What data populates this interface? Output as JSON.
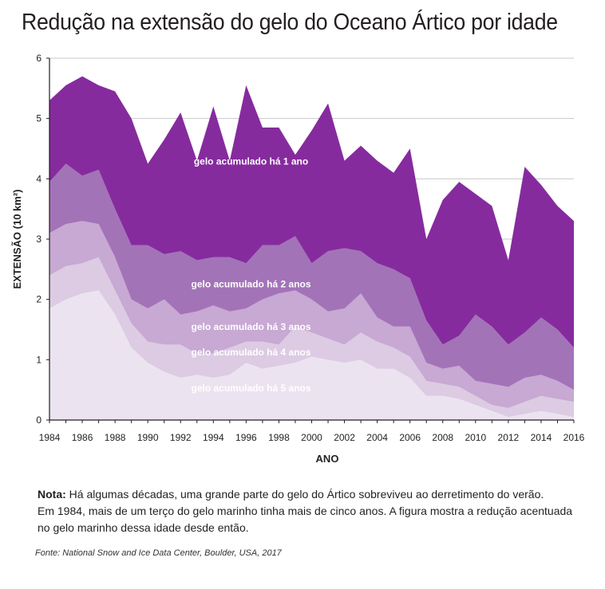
{
  "header": {
    "title": "Redução na extensão do gelo do Oceano Ártico por idade"
  },
  "note": {
    "lead": "Nota:",
    "line1": " Há algumas décadas, uma grande parte do gelo do Ártico sobreviveu ao derretimento do verão.",
    "line2": "Em 1984, mais de um terço do gelo marinho tinha mais de cinco anos. A figura mostra a redução acentuada",
    "line3": "no gelo marinho dessa idade desde então."
  },
  "source": "Fonte:  National Snow and Ice Data Center, Boulder, USA, 2017",
  "chart_data": {
    "type": "area",
    "stacked": true,
    "title": "Redução na extensão do gelo do Oceano Ártico por idade",
    "xlabel": "ANO",
    "ylabel": "EXTENSÃO (10 km²)",
    "ylim": [
      0,
      6
    ],
    "xlim": [
      1984,
      2016
    ],
    "yticks": [
      "0",
      "1",
      "2",
      "3",
      "4",
      "5",
      "6"
    ],
    "xticks": [
      "1984",
      "1986",
      "1988",
      "1990",
      "1992",
      "1994",
      "1996",
      "1998",
      "2000",
      "2002",
      "2004",
      "2006",
      "2008",
      "2010",
      "2012",
      "2014",
      "2016"
    ],
    "grid": "horizontal",
    "x": [
      1984,
      1985,
      1986,
      1987,
      1988,
      1989,
      1990,
      1991,
      1992,
      1993,
      1994,
      1995,
      1996,
      1997,
      1998,
      1999,
      2000,
      2001,
      2002,
      2003,
      2004,
      2005,
      2006,
      2007,
      2008,
      2009,
      2010,
      2011,
      2012,
      2013,
      2014,
      2015,
      2016
    ],
    "series": [
      {
        "name": "gelo acumulado há 5 anos",
        "color": "#ece3f0",
        "values": [
          1.85,
          2.0,
          2.1,
          2.15,
          1.75,
          1.2,
          0.95,
          0.8,
          0.7,
          0.75,
          0.7,
          0.75,
          0.95,
          0.85,
          0.9,
          0.95,
          1.05,
          1.0,
          0.95,
          1.0,
          0.85,
          0.85,
          0.7,
          0.4,
          0.4,
          0.35,
          0.25,
          0.15,
          0.05,
          0.1,
          0.15,
          0.1,
          0.05
        ]
      },
      {
        "name": "gelo acumulado há 4 anos",
        "color": "#dccbe3",
        "values": [
          0.55,
          0.55,
          0.5,
          0.55,
          0.4,
          0.4,
          0.35,
          0.45,
          0.55,
          0.35,
          0.4,
          0.45,
          0.35,
          0.45,
          0.35,
          0.6,
          0.4,
          0.35,
          0.3,
          0.45,
          0.45,
          0.35,
          0.35,
          0.25,
          0.2,
          0.2,
          0.15,
          0.1,
          0.15,
          0.2,
          0.25,
          0.25,
          0.25
        ]
      },
      {
        "name": "gelo acumulado há 3 anos",
        "color": "#c7a9d3",
        "values": [
          0.7,
          0.7,
          0.7,
          0.55,
          0.55,
          0.4,
          0.55,
          0.75,
          0.5,
          0.7,
          0.8,
          0.6,
          0.55,
          0.7,
          0.85,
          0.6,
          0.55,
          0.45,
          0.6,
          0.65,
          0.4,
          0.35,
          0.5,
          0.3,
          0.25,
          0.35,
          0.25,
          0.35,
          0.35,
          0.4,
          0.35,
          0.3,
          0.2
        ]
      },
      {
        "name": "gelo acumulado há 2 anos",
        "color": "#a373b8",
        "values": [
          0.85,
          1.0,
          0.75,
          0.9,
          0.8,
          0.9,
          1.05,
          0.75,
          1.05,
          0.85,
          0.8,
          0.9,
          0.75,
          0.9,
          0.8,
          0.9,
          0.6,
          1.0,
          1.0,
          0.7,
          0.9,
          0.95,
          0.8,
          0.7,
          0.4,
          0.5,
          1.1,
          0.95,
          0.7,
          0.75,
          0.95,
          0.85,
          0.7
        ]
      },
      {
        "name": "gelo acumulado há 1 ano",
        "color": "#862b9e",
        "values": [
          1.35,
          1.3,
          1.65,
          1.4,
          1.95,
          2.1,
          1.35,
          1.9,
          2.3,
          1.65,
          2.5,
          1.6,
          2.95,
          1.95,
          1.95,
          1.35,
          2.2,
          2.45,
          1.45,
          1.75,
          1.7,
          1.6,
          2.15,
          1.35,
          2.4,
          2.55,
          2.0,
          2.0,
          1.4,
          2.75,
          2.2,
          2.05,
          2.1
        ]
      }
    ]
  }
}
